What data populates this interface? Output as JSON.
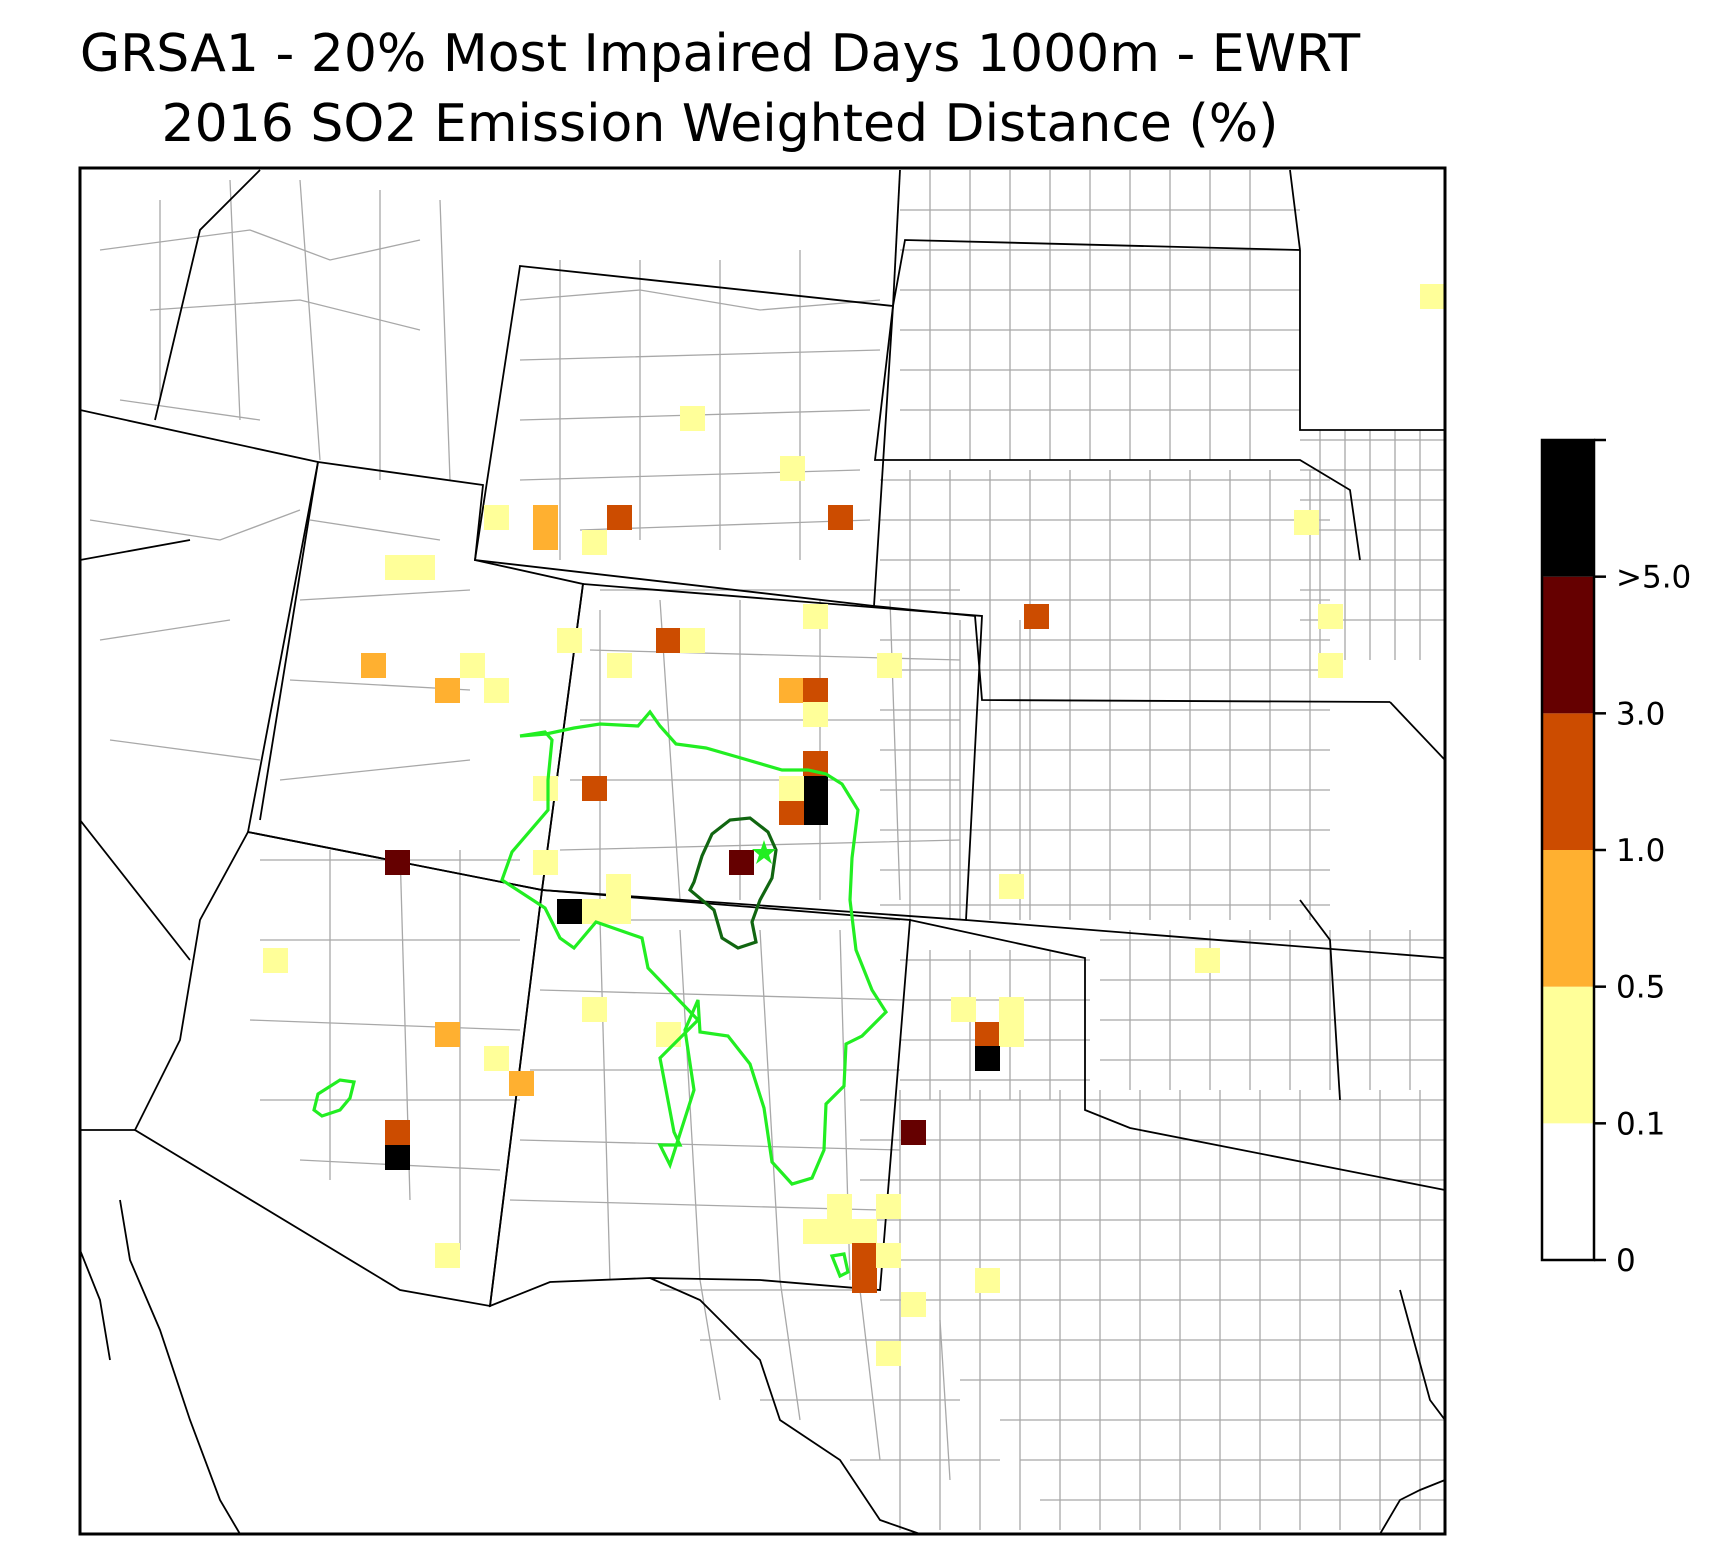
{
  "title": {
    "line1": "GRSA1 - 20% Most Impaired Days 1000m - EWRT",
    "line2": "2016 SO2 Emission Weighted Distance (%)"
  },
  "colors": {
    "bin_0_01": "#ffffff",
    "bin_01_05": "#ffff99",
    "bin_05_10": "#ffb030",
    "bin_10_30": "#cc4c00",
    "bin_30_50": "#650000",
    "bin_gt5": "#000000",
    "contour_outer": "#22ee22",
    "contour_inner": "#116611",
    "county_lines": "#a0a0a0",
    "state_lines": "#000000",
    "receptor_marker": "#22ee22"
  },
  "colorbar": {
    "tick_labels": [
      "0",
      "0.1",
      "0.5",
      "1.0",
      "3.0",
      ">5.0"
    ]
  },
  "map": {
    "receptor_icon": "star-icon"
  }
}
